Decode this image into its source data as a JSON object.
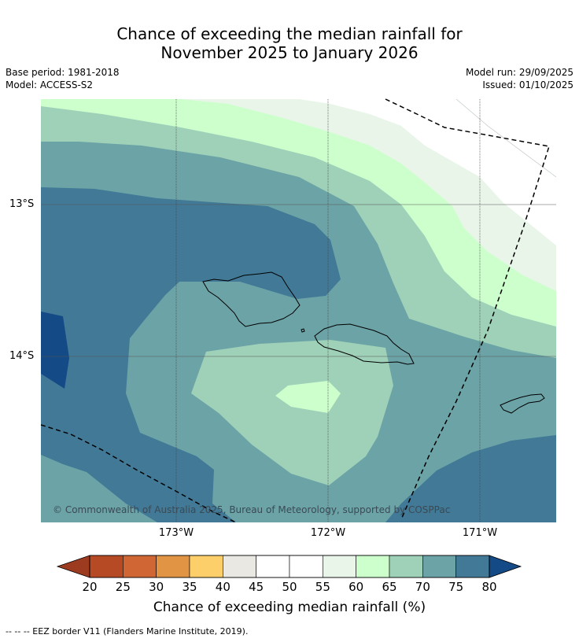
{
  "title_line1": "Chance of exceeding the median rainfall for",
  "title_line2": "November 2025 to January 2026",
  "base_period": "Base period: 1981-2018",
  "model": "Model: ACCESS-S2",
  "model_run": "Model run: 29/09/2025",
  "issued": "Issued: 01/10/2025",
  "lat_labels": [
    "13°S",
    "14°S"
  ],
  "lon_labels": [
    "173°W",
    "172°W",
    "171°W"
  ],
  "copyright": "© Commonwealth of Australia 2025, Bureau of Meteorology, supported by COSPPac",
  "colorbar": {
    "title": "Chance of exceeding median rainfall (%)",
    "ticks": [
      "20",
      "25",
      "30",
      "35",
      "40",
      "45",
      "50",
      "55",
      "60",
      "65",
      "70",
      "75",
      "80"
    ],
    "colors": [
      "#b54a25",
      "#cf6634",
      "#e19444",
      "#fdcf6b",
      "#e9e8e3",
      "#ffffff",
      "#ffffff",
      "#e9f5e9",
      "#ccffcc",
      "#9ed1b8",
      "#6ca3a6",
      "#417996"
    ],
    "low_color": "#9c3b20",
    "high_color": "#144a85"
  },
  "footnote": "--  --  -- EEZ border V11 (Flanders Marine Institute, 2019)."
}
